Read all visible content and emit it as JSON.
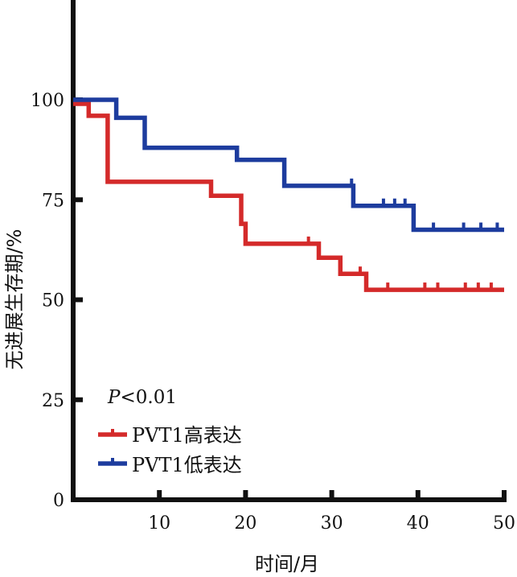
{
  "chart_data": {
    "type": "line",
    "title": "",
    "xlabel": "时间/月",
    "ylabel": "无进展生存期/%",
    "xlim": [
      0,
      50
    ],
    "ylim": [
      0,
      120
    ],
    "x_ticks": [
      10,
      20,
      30,
      40,
      50
    ],
    "y_ticks": [
      0,
      25,
      50,
      75,
      100
    ],
    "grid": false,
    "legend_position": "bottom-left",
    "annotation": {
      "italic": "P",
      "rest": "<0.01"
    },
    "series": [
      {
        "name": "PVT1高表达",
        "color": "#d42a2a",
        "steps": [
          [
            0,
            99
          ],
          [
            1.8,
            96
          ],
          [
            4,
            79.5
          ],
          [
            16,
            76
          ],
          [
            19.5,
            69
          ],
          [
            20,
            64
          ],
          [
            28.5,
            60.5
          ],
          [
            31,
            56.5
          ],
          [
            34,
            52.5
          ],
          [
            50,
            52.5
          ]
        ],
        "censored": [
          [
            27.3,
            64
          ],
          [
            33.3,
            56.5
          ],
          [
            36.5,
            52.5
          ],
          [
            40.8,
            52.5
          ],
          [
            42.3,
            52.5
          ],
          [
            45.5,
            52.5
          ],
          [
            47,
            52.5
          ],
          [
            48.5,
            52.5
          ]
        ]
      },
      {
        "name": "PVT1低表达",
        "color": "#1d3c9e",
        "steps": [
          [
            0,
            100
          ],
          [
            5,
            95.5
          ],
          [
            8.3,
            88
          ],
          [
            19,
            85
          ],
          [
            24.5,
            78.5
          ],
          [
            32.5,
            73.5
          ],
          [
            39.5,
            67.5
          ],
          [
            50,
            67.5
          ]
        ],
        "censored": [
          [
            32.3,
            78.5
          ],
          [
            36,
            73.5
          ],
          [
            37.3,
            73.5
          ],
          [
            38.5,
            73.5
          ],
          [
            41.8,
            67.5
          ],
          [
            45.3,
            67.5
          ],
          [
            47.3,
            67.5
          ],
          [
            49.2,
            67.5
          ]
        ]
      }
    ]
  }
}
